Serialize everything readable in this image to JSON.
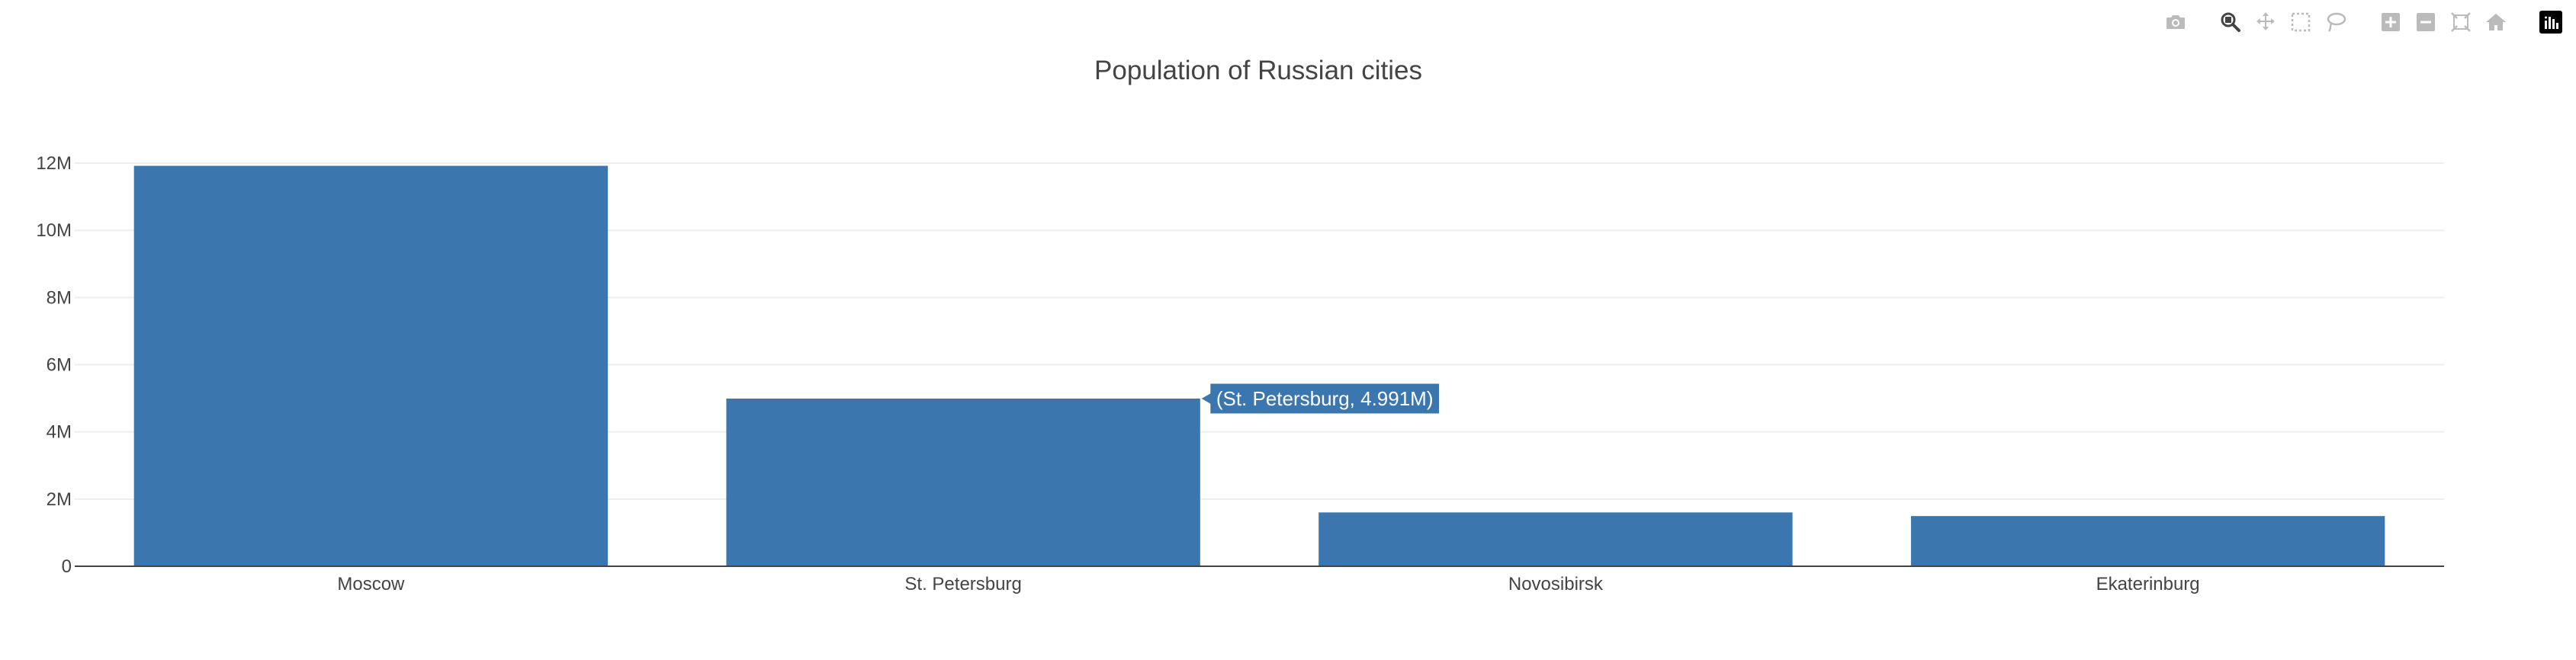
{
  "modebar": {
    "buttons": [
      {
        "name": "camera-icon",
        "title": "Download plot as a png",
        "group": 0
      },
      {
        "name": "zoom-icon",
        "title": "Zoom",
        "group": 1,
        "active": true
      },
      {
        "name": "pan-icon",
        "title": "Pan",
        "group": 1
      },
      {
        "name": "box-select-icon",
        "title": "Box Select",
        "group": 1
      },
      {
        "name": "lasso-select-icon",
        "title": "Lasso Select",
        "group": 1
      },
      {
        "name": "zoom-in-icon",
        "title": "Zoom in",
        "group": 2
      },
      {
        "name": "zoom-out-icon",
        "title": "Zoom out",
        "group": 2
      },
      {
        "name": "autoscale-icon",
        "title": "Autoscale",
        "group": 2
      },
      {
        "name": "reset-axes-icon",
        "title": "Reset axes",
        "group": 2
      },
      {
        "name": "plotly-logo-icon",
        "title": "Produced with Plotly",
        "group": 3
      }
    ],
    "icon_color": "#bbbbbb",
    "active_color": "#444444",
    "logo_bg": "#000000"
  },
  "chart_data": {
    "type": "bar",
    "title": "Population of Russian cities",
    "xlabel": "",
    "ylabel": "",
    "categories": [
      "Moscow",
      "St. Petersburg",
      "Novosibirsk",
      "Ekaterinburg"
    ],
    "values": [
      11920000,
      4991000,
      1602000,
      1494000
    ],
    "ylim": [
      0,
      12500000
    ],
    "yticks": [
      0,
      2000000,
      4000000,
      6000000,
      8000000,
      10000000,
      12000000
    ],
    "ytick_labels": [
      "0",
      "2M",
      "4M",
      "6M",
      "8M",
      "10M",
      "12M"
    ],
    "grid": true,
    "legend": "none",
    "bar_color": "#3b76af",
    "grid_color": "#eeeeee",
    "axis_color": "#444444",
    "hover": {
      "category_index": 1,
      "label": "(St. Petersburg, 4.991M)"
    }
  }
}
